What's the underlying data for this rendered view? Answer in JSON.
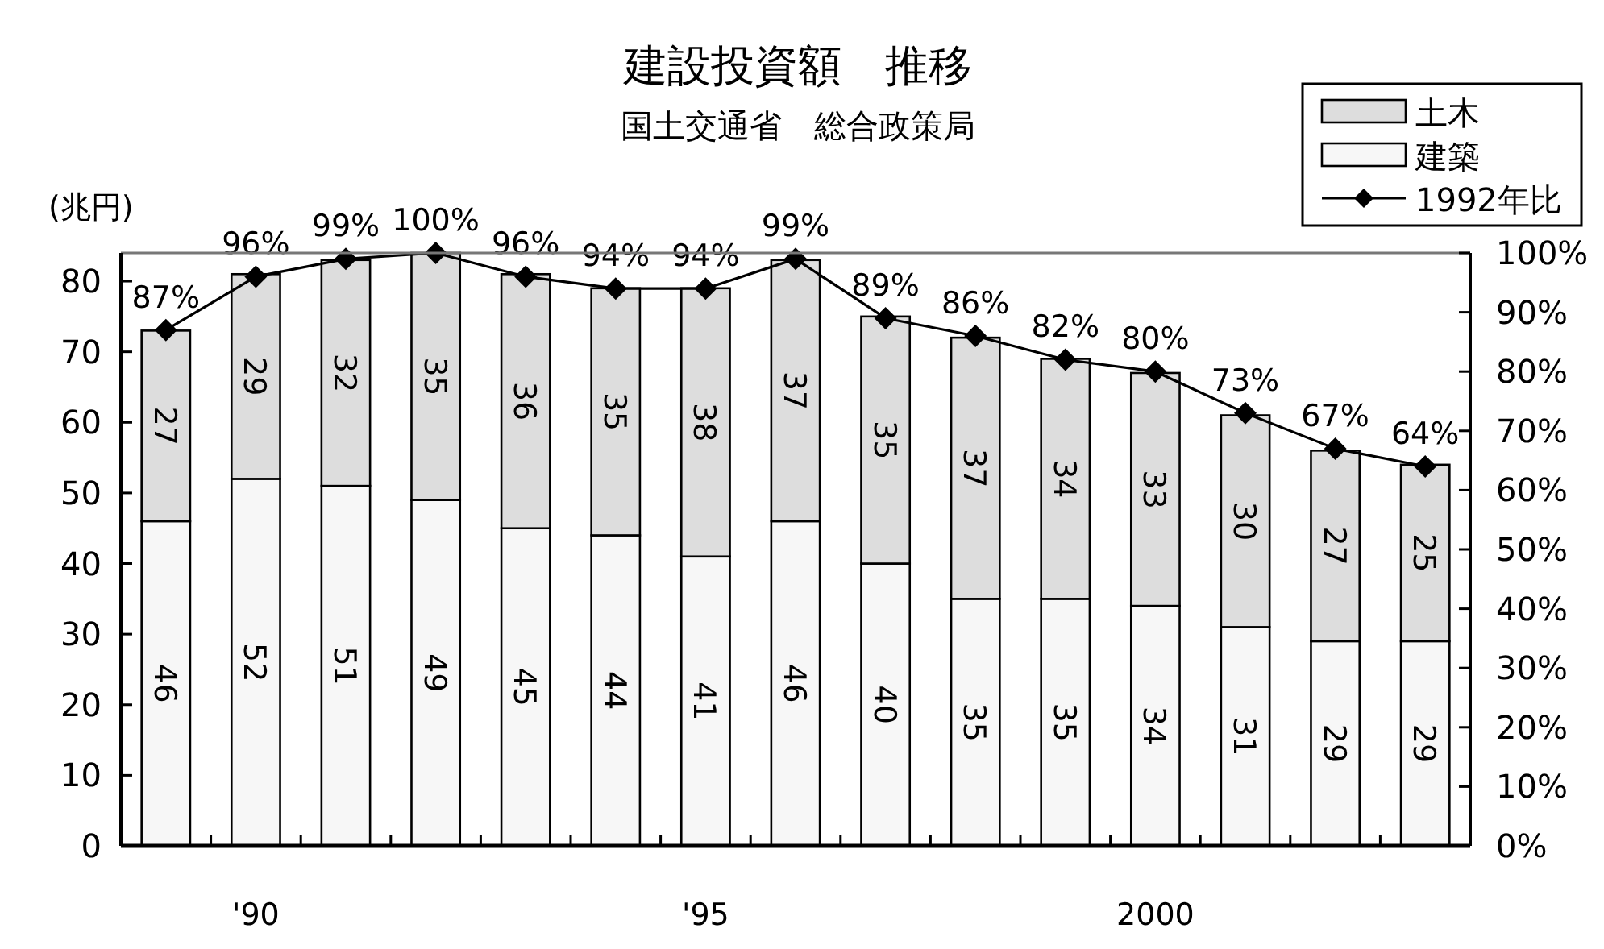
{
  "chart_data": {
    "type": "bar",
    "title": "建設投資額　推移",
    "subtitle": "国土交通省　総合政策局",
    "ylabel": "(兆円)",
    "categories": [
      null,
      "'90",
      null,
      null,
      null,
      null,
      "'95",
      null,
      null,
      null,
      null,
      "2000",
      null,
      null,
      null
    ],
    "stacked": true,
    "data_labels": true,
    "legend": "top right",
    "marker": "diamond",
    "grid": false,
    "ylim": [
      0,
      84
    ],
    "yticks": [
      0,
      10,
      20,
      30,
      40,
      50,
      60,
      70,
      80
    ],
    "y2lim": [
      0,
      100
    ],
    "y2ticks": [
      {
        "value": 0,
        "label": "0%"
      },
      {
        "value": 10,
        "label": "10%"
      },
      {
        "value": 20,
        "label": "20%"
      },
      {
        "value": 30,
        "label": "30%"
      },
      {
        "value": 40,
        "label": "40%"
      },
      {
        "value": 50,
        "label": "50%"
      },
      {
        "value": 60,
        "label": "60%"
      },
      {
        "value": 70,
        "label": "70%"
      },
      {
        "value": 80,
        "label": "80%"
      },
      {
        "value": 90,
        "label": "90%"
      },
      {
        "value": 100,
        "label": "100%"
      }
    ],
    "series": [
      {
        "name": "建築",
        "color": "#f7f7f7",
        "values": [
          46,
          52,
          51,
          49,
          45,
          44,
          41,
          46,
          40,
          35,
          35,
          34,
          31,
          29,
          29
        ]
      },
      {
        "name": "土木",
        "color": "#dddddd",
        "values": [
          27,
          29,
          32,
          35,
          36,
          35,
          38,
          37,
          35,
          37,
          34,
          33,
          30,
          27,
          25
        ]
      },
      {
        "name": "1992年比",
        "type": "line",
        "axis": "y2",
        "color": "#000000",
        "values": [
          87,
          96,
          99,
          100,
          96,
          94,
          94,
          99,
          89,
          86,
          82,
          80,
          73,
          67,
          64
        ],
        "value_labels": [
          "87%",
          "96%",
          "99%",
          "100%",
          "96%",
          "94%",
          "94%",
          "99%",
          "89%",
          "86%",
          "82%",
          "80%",
          "73%",
          "67%",
          "64%"
        ]
      }
    ]
  }
}
